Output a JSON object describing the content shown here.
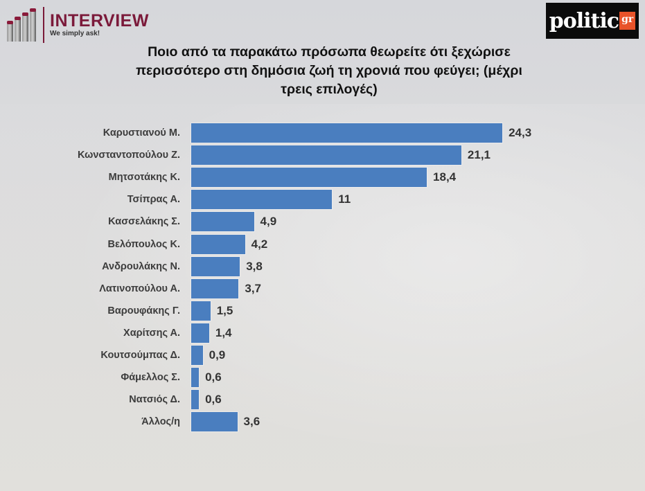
{
  "header": {
    "left_logo": {
      "title": "INTERVIEW",
      "subtitle": "We simply ask!"
    },
    "right_logo": {
      "word": "politic",
      "badge": "gr"
    }
  },
  "chart_data": {
    "type": "bar",
    "orientation": "horizontal",
    "title": "Ποιο από τα παρακάτω πρόσωπα θεωρείτε ότι ξεχώρισε περισσότερο στη δημόσια ζωή τη χρονιά που φεύγει; (μέχρι τρεις επιλογές)",
    "title_lines": [
      "Ποιο από τα παρακάτω πρόσωπα θεωρείτε ότι ξεχώρισε",
      "περισσότερο στη δημόσια ζωή τη χρονιά που φεύγει; (μέχρι",
      "τρεις επιλογές)"
    ],
    "xlabel": "",
    "ylabel": "",
    "grid": false,
    "legend": null,
    "bar_color": "#4a7ebf",
    "categories": [
      "Καρυστιανού Μ.",
      "Κωνσταντοπούλου Ζ.",
      "Μητσοτάκης Κ.",
      "Τσίπρας Α.",
      "Κασσελάκης Σ.",
      "Βελόπουλος Κ.",
      "Ανδρουλάκης Ν.",
      "Λατινοπούλου Α.",
      "Βαρουφάκης Γ.",
      "Χαρίτσης Α.",
      "Κουτσούμπας Δ.",
      "Φάμελλος Σ.",
      "Νατσιός Δ.",
      "Άλλος/η"
    ],
    "values": [
      24.3,
      21.1,
      18.4,
      11,
      4.9,
      4.2,
      3.8,
      3.7,
      1.5,
      1.4,
      0.9,
      0.6,
      0.6,
      3.6
    ],
    "value_labels": [
      "24,3",
      "21,1",
      "18,4",
      "11",
      "4,9",
      "4,2",
      "3,8",
      "3,7",
      "1,5",
      "1,4",
      "0,9",
      "0,6",
      "0,6",
      "3,6"
    ]
  }
}
